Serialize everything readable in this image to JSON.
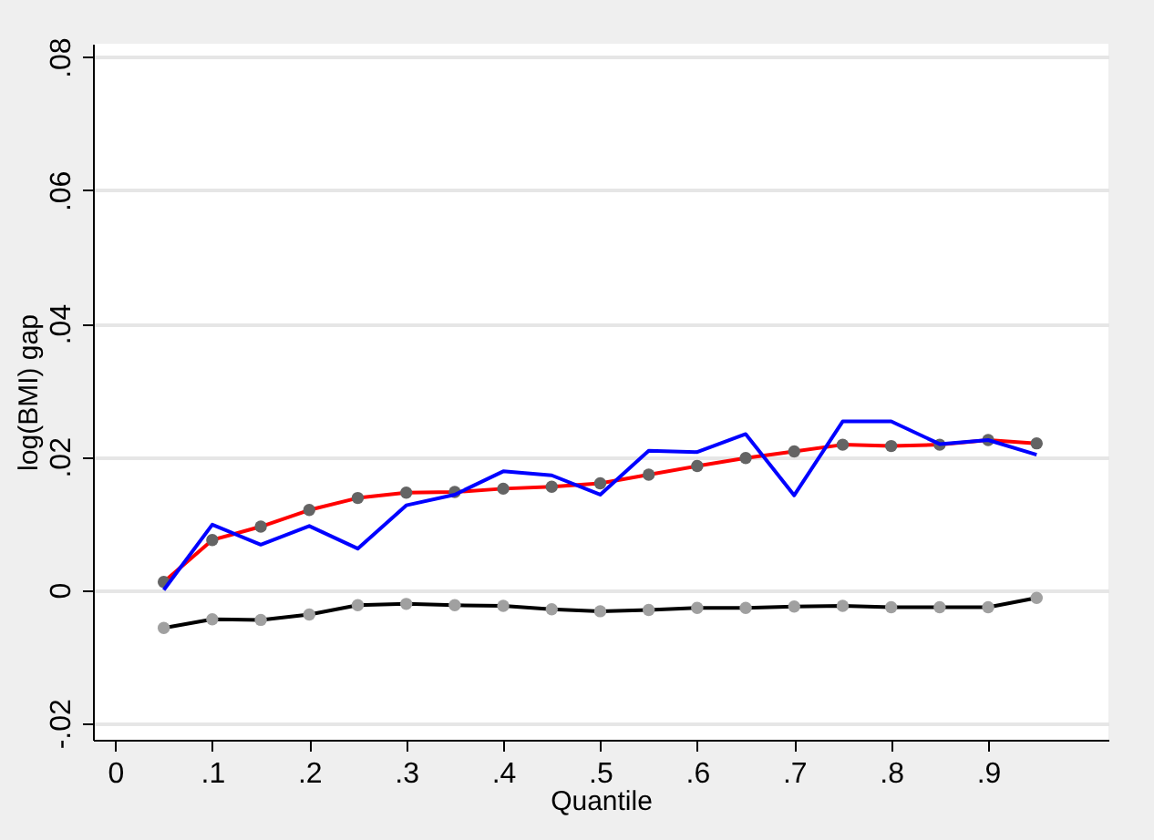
{
  "chart_data": {
    "type": "line",
    "xlabel": "Quantile",
    "ylabel": "log(BMI) gap",
    "x": [
      0.05,
      0.1,
      0.15,
      0.2,
      0.25,
      0.3,
      0.35,
      0.4,
      0.45,
      0.5,
      0.55,
      0.6,
      0.65,
      0.7,
      0.75,
      0.8,
      0.85,
      0.9,
      0.95
    ],
    "series": [
      {
        "color": "#ff0000",
        "values": [
          0.0012,
          0.0075,
          0.0095,
          0.012,
          0.0138,
          0.0146,
          0.0147,
          0.0152,
          0.0155,
          0.016,
          0.0173,
          0.0186,
          0.0198,
          0.0208,
          0.0218,
          0.0216,
          0.0218,
          0.0225,
          0.022
        ]
      },
      {
        "type": "scatter",
        "color": "#646464",
        "marker": "circle",
        "values": [
          0.0012,
          0.0075,
          0.0095,
          0.012,
          0.0138,
          0.0146,
          0.0147,
          0.0152,
          0.0155,
          0.016,
          0.0173,
          0.0186,
          0.0198,
          0.0208,
          0.0218,
          0.0216,
          0.0218,
          0.0225,
          0.022
        ]
      },
      {
        "color": "#0000ff",
        "values": [
          0,
          0.0098,
          0.0068,
          0.0096,
          0.0062,
          0.0127,
          0.0143,
          0.0178,
          0.0172,
          0.0143,
          0.0209,
          0.0207,
          0.0234,
          0.0142,
          0.0253,
          0.0253,
          0.0219,
          0.0225,
          0.0203
        ]
      },
      {
        "color": "#000000",
        "values": [
          -0.0057,
          -0.0044,
          -0.0045,
          -0.0037,
          -0.0023,
          -0.0021,
          -0.0023,
          -0.0024,
          -0.0029,
          -0.0032,
          -0.003,
          -0.0027,
          -0.0027,
          -0.0025,
          -0.0024,
          -0.0026,
          -0.0026,
          -0.0026,
          -0.0012
        ]
      },
      {
        "type": "scatter",
        "color": "#a0a0a0",
        "marker": "circle",
        "values": [
          -0.0057,
          -0.0044,
          -0.0045,
          -0.0037,
          -0.0023,
          -0.0021,
          -0.0023,
          -0.0024,
          -0.0029,
          -0.0032,
          -0.003,
          -0.0027,
          -0.0027,
          -0.0025,
          -0.0024,
          -0.0026,
          -0.0026,
          -0.0026,
          -0.0012
        ]
      }
    ],
    "xlim": [
      -0.023,
      1.024
    ],
    "ylim": [
      -0.0225,
      0.082
    ],
    "xticks": [
      0,
      {
        "value": 0.1,
        "label": ".1"
      },
      {
        "value": 0.2,
        "label": ".2"
      },
      {
        "value": 0.3,
        "label": ".3"
      },
      {
        "value": 0.4,
        "label": ".4"
      },
      {
        "value": 0.5,
        "label": ".5"
      },
      {
        "value": 0.6,
        "label": ".6"
      },
      {
        "value": 0.7,
        "label": ".7"
      },
      {
        "value": 0.8,
        "label": ".8"
      },
      {
        "value": 0.9,
        "label": ".9"
      }
    ],
    "yticks": [
      {
        "value": -0.02,
        "label": "-.02"
      },
      0,
      {
        "value": 0.02,
        "label": ".02"
      },
      {
        "value": 0.04,
        "label": ".04"
      },
      {
        "value": 0.06,
        "label": ".06"
      },
      {
        "value": 0.08,
        "label": ".08"
      }
    ],
    "grid": "y",
    "line_style": "solid"
  }
}
